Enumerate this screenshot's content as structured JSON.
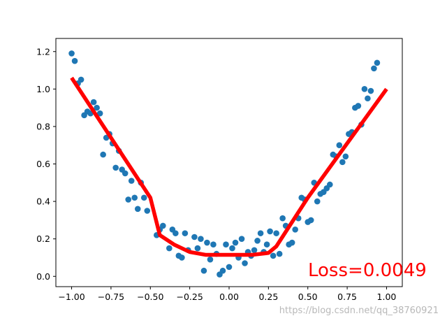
{
  "chart_data": {
    "type": "scatter",
    "title": "",
    "xlabel": "",
    "ylabel": "",
    "xlim": [
      -1.1,
      1.1
    ],
    "ylim": [
      -0.055,
      1.27
    ],
    "grid": false,
    "x_ticks": [
      {
        "value": -1.0,
        "label": "−1.00"
      },
      {
        "value": -0.75,
        "label": "−0.75"
      },
      {
        "value": -0.5,
        "label": "−0.50"
      },
      {
        "value": -0.25,
        "label": "−0.25"
      },
      {
        "value": 0.0,
        "label": "0.00"
      },
      {
        "value": 0.25,
        "label": "0.25"
      },
      {
        "value": 0.5,
        "label": "0.50"
      },
      {
        "value": 0.75,
        "label": "0.75"
      },
      {
        "value": 1.0,
        "label": "1.00"
      }
    ],
    "y_ticks": [
      {
        "value": 0.0,
        "label": "0.0"
      },
      {
        "value": 0.2,
        "label": "0.2"
      },
      {
        "value": 0.4,
        "label": "0.4"
      },
      {
        "value": 0.6,
        "label": "0.6"
      },
      {
        "value": 0.8,
        "label": "0.8"
      },
      {
        "value": 1.0,
        "label": "1.0"
      },
      {
        "value": 1.2,
        "label": "1.2"
      }
    ],
    "scatter_color": "#1f77b4",
    "line_color": "#ff0000",
    "scatter_points": [
      [
        -1.0,
        1.19
      ],
      [
        -0.98,
        1.15
      ],
      [
        -0.96,
        1.03
      ],
      [
        -0.94,
        1.05
      ],
      [
        -0.92,
        0.86
      ],
      [
        -0.9,
        0.88
      ],
      [
        -0.88,
        0.87
      ],
      [
        -0.86,
        0.93
      ],
      [
        -0.84,
        0.9
      ],
      [
        -0.82,
        0.87
      ],
      [
        -0.8,
        0.65
      ],
      [
        -0.78,
        0.74
      ],
      [
        -0.76,
        0.76
      ],
      [
        -0.74,
        0.71
      ],
      [
        -0.72,
        0.58
      ],
      [
        -0.7,
        0.67
      ],
      [
        -0.68,
        0.57
      ],
      [
        -0.66,
        0.55
      ],
      [
        -0.64,
        0.41
      ],
      [
        -0.62,
        0.51
      ],
      [
        -0.6,
        0.42
      ],
      [
        -0.58,
        0.36
      ],
      [
        -0.56,
        0.5
      ],
      [
        -0.54,
        0.42
      ],
      [
        -0.52,
        0.35
      ],
      [
        -0.46,
        0.22
      ],
      [
        -0.44,
        0.25
      ],
      [
        -0.42,
        0.27
      ],
      [
        -0.38,
        0.15
      ],
      [
        -0.36,
        0.25
      ],
      [
        -0.34,
        0.23
      ],
      [
        -0.32,
        0.11
      ],
      [
        -0.3,
        0.1
      ],
      [
        -0.28,
        0.23
      ],
      [
        -0.26,
        0.14
      ],
      [
        -0.22,
        0.21
      ],
      [
        -0.2,
        0.15
      ],
      [
        -0.18,
        0.2
      ],
      [
        -0.16,
        0.03
      ],
      [
        -0.14,
        0.18
      ],
      [
        -0.12,
        0.09
      ],
      [
        -0.1,
        0.17
      ],
      [
        -0.08,
        0.12
      ],
      [
        -0.06,
        0.01
      ],
      [
        -0.04,
        0.03
      ],
      [
        -0.02,
        0.17
      ],
      [
        0.0,
        0.05
      ],
      [
        0.02,
        0.15
      ],
      [
        0.04,
        0.18
      ],
      [
        0.06,
        0.1
      ],
      [
        0.08,
        0.2
      ],
      [
        0.1,
        0.07
      ],
      [
        0.12,
        0.13
      ],
      [
        0.14,
        0.11
      ],
      [
        0.16,
        0.14
      ],
      [
        0.18,
        0.19
      ],
      [
        0.2,
        0.23
      ],
      [
        0.22,
        0.13
      ],
      [
        0.24,
        0.17
      ],
      [
        0.26,
        0.24
      ],
      [
        0.28,
        0.11
      ],
      [
        0.3,
        0.23
      ],
      [
        0.32,
        0.12
      ],
      [
        0.34,
        0.31
      ],
      [
        0.36,
        0.27
      ],
      [
        0.38,
        0.17
      ],
      [
        0.4,
        0.18
      ],
      [
        0.42,
        0.25
      ],
      [
        0.44,
        0.31
      ],
      [
        0.46,
        0.42
      ],
      [
        0.48,
        0.41
      ],
      [
        0.5,
        0.29
      ],
      [
        0.52,
        0.3
      ],
      [
        0.54,
        0.5
      ],
      [
        0.56,
        0.4
      ],
      [
        0.58,
        0.44
      ],
      [
        0.6,
        0.45
      ],
      [
        0.62,
        0.47
      ],
      [
        0.64,
        0.49
      ],
      [
        0.66,
        0.65
      ],
      [
        0.68,
        0.64
      ],
      [
        0.7,
        0.7
      ],
      [
        0.72,
        0.61
      ],
      [
        0.74,
        0.64
      ],
      [
        0.76,
        0.76
      ],
      [
        0.78,
        0.77
      ],
      [
        0.8,
        0.9
      ],
      [
        0.82,
        0.91
      ],
      [
        0.84,
        0.81
      ],
      [
        0.86,
        1.0
      ],
      [
        0.88,
        0.95
      ],
      [
        0.9,
        0.99
      ],
      [
        0.92,
        1.11
      ],
      [
        0.94,
        1.14
      ]
    ],
    "fit_line": [
      [
        -1.0,
        1.06
      ],
      [
        -0.5,
        0.42
      ],
      [
        -0.44,
        0.22
      ],
      [
        -0.35,
        0.17
      ],
      [
        -0.25,
        0.13
      ],
      [
        -0.15,
        0.115
      ],
      [
        0.0,
        0.115
      ],
      [
        0.15,
        0.115
      ],
      [
        0.25,
        0.125
      ],
      [
        0.3,
        0.16
      ],
      [
        0.5,
        0.42
      ],
      [
        1.0,
        1.0
      ]
    ]
  },
  "annotation": {
    "loss_text": "Loss=0.0049"
  },
  "watermark": {
    "text": "https://blog.csdn.net/qq_38760921"
  }
}
